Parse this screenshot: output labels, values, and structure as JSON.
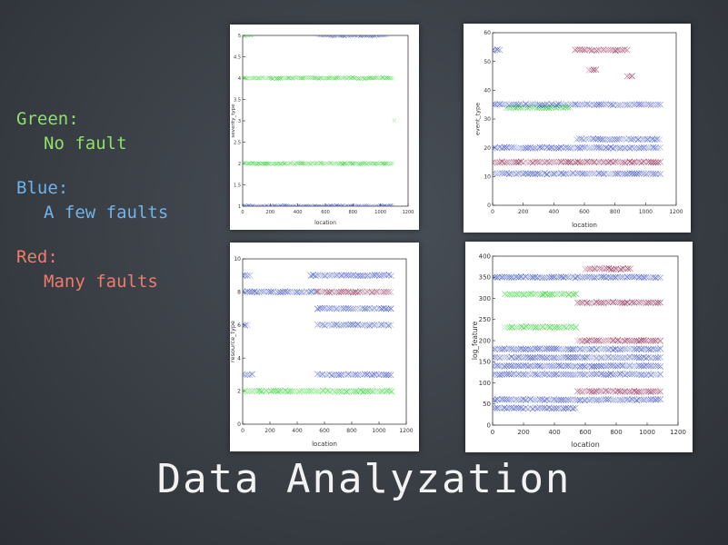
{
  "legend": [
    {
      "title": "Green:",
      "desc": "No fault",
      "color": "#8ee06a"
    },
    {
      "title": "Blue:",
      "desc": "A few faults",
      "color": "#6fb3ea"
    },
    {
      "title": "Red:",
      "desc": "Many faults",
      "color": "#f07b6b"
    }
  ],
  "slide_title": "Data Analyzation",
  "series_colors": {
    "green": "#2bd12b",
    "blue": "#3a4fc0",
    "red": "#8a1f4a"
  },
  "chart_data": [
    {
      "type": "scatter",
      "xlabel": "location",
      "ylabel": "severity_type",
      "xlim": [
        0,
        1200
      ],
      "ylim": [
        1,
        5
      ],
      "xticks": [
        0,
        200,
        400,
        600,
        800,
        1000,
        1200
      ],
      "yticks": [
        1,
        1.5,
        2,
        2.5,
        3,
        3.5,
        4,
        4.5,
        5
      ],
      "marker": "x",
      "bands": [
        {
          "y": 1,
          "from": 0,
          "to": 1100,
          "color": "blue"
        },
        {
          "y": 2,
          "from": 0,
          "to": 1100,
          "color": "green"
        },
        {
          "y": 4,
          "from": 0,
          "to": 1100,
          "color": "green"
        },
        {
          "y": 5,
          "from": 0,
          "to": 60,
          "color": "green"
        },
        {
          "y": 5,
          "from": 550,
          "to": 1050,
          "color": "blue"
        },
        {
          "y": 3,
          "from": 1100,
          "to": 1110,
          "color": "green"
        }
      ]
    },
    {
      "type": "scatter",
      "xlabel": "location",
      "ylabel": "event_type",
      "xlim": [
        0,
        1200
      ],
      "ylim": [
        0,
        60
      ],
      "xticks": [
        0,
        200,
        400,
        600,
        800,
        1000,
        1200
      ],
      "yticks": [
        0,
        10,
        20,
        30,
        40,
        50,
        60
      ],
      "marker": "x",
      "bands": [
        {
          "y": 11,
          "from": 0,
          "to": 1100,
          "color": "blue"
        },
        {
          "y": 15,
          "from": 0,
          "to": 1100,
          "color": "red"
        },
        {
          "y": 20,
          "from": 0,
          "to": 1100,
          "color": "blue"
        },
        {
          "y": 23,
          "from": 550,
          "to": 1100,
          "color": "blue"
        },
        {
          "y": 34,
          "from": 90,
          "to": 520,
          "color": "green"
        },
        {
          "y": 35,
          "from": 0,
          "to": 1100,
          "color": "blue"
        },
        {
          "y": 54,
          "from": 0,
          "to": 60,
          "color": "blue"
        },
        {
          "y": 54,
          "from": 540,
          "to": 880,
          "color": "red"
        },
        {
          "y": 47,
          "from": 630,
          "to": 680,
          "color": "red"
        },
        {
          "y": 45,
          "from": 880,
          "to": 920,
          "color": "red"
        }
      ]
    },
    {
      "type": "scatter",
      "xlabel": "location",
      "ylabel": "resource_type",
      "xlim": [
        0,
        1200
      ],
      "ylim": [
        0,
        10
      ],
      "xticks": [
        0,
        200,
        400,
        600,
        800,
        1000,
        1200
      ],
      "yticks": [
        0,
        2,
        4,
        6,
        8,
        10
      ],
      "marker": "x",
      "bands": [
        {
          "y": 2,
          "from": 0,
          "to": 1100,
          "color": "green"
        },
        {
          "y": 3,
          "from": 0,
          "to": 80,
          "color": "blue"
        },
        {
          "y": 6,
          "from": 0,
          "to": 40,
          "color": "blue"
        },
        {
          "y": 7,
          "from": 550,
          "to": 1100,
          "color": "blue"
        },
        {
          "y": 8,
          "from": 0,
          "to": 550,
          "color": "blue"
        },
        {
          "y": 8,
          "from": 550,
          "to": 1100,
          "color": "red"
        },
        {
          "y": 9,
          "from": 0,
          "to": 60,
          "color": "blue"
        },
        {
          "y": 9,
          "from": 500,
          "to": 1100,
          "color": "blue"
        },
        {
          "y": 6,
          "from": 550,
          "to": 1100,
          "color": "blue"
        },
        {
          "y": 3,
          "from": 550,
          "to": 1100,
          "color": "blue"
        }
      ]
    },
    {
      "type": "scatter",
      "xlabel": "location",
      "ylabel": "log_feature",
      "xlim": [
        0,
        1200
      ],
      "ylim": [
        0,
        400
      ],
      "xticks": [
        0,
        200,
        400,
        600,
        800,
        1000,
        1200
      ],
      "yticks": [
        0,
        50,
        100,
        150,
        200,
        250,
        300,
        350,
        400
      ],
      "marker": "x",
      "bands": [
        {
          "y": 310,
          "from": 80,
          "to": 540,
          "color": "green"
        },
        {
          "y": 232,
          "from": 80,
          "to": 540,
          "color": "green"
        },
        {
          "y": 350,
          "from": 0,
          "to": 1100,
          "color": "blue"
        },
        {
          "y": 290,
          "from": 550,
          "to": 1100,
          "color": "red"
        },
        {
          "y": 200,
          "from": 550,
          "to": 1100,
          "color": "red"
        },
        {
          "y": 180,
          "from": 0,
          "to": 1100,
          "color": "blue"
        },
        {
          "y": 160,
          "from": 0,
          "to": 1100,
          "color": "blue"
        },
        {
          "y": 140,
          "from": 0,
          "to": 1100,
          "color": "blue"
        },
        {
          "y": 120,
          "from": 0,
          "to": 1100,
          "color": "blue"
        },
        {
          "y": 80,
          "from": 550,
          "to": 1100,
          "color": "red"
        },
        {
          "y": 60,
          "from": 0,
          "to": 1100,
          "color": "blue"
        },
        {
          "y": 40,
          "from": 0,
          "to": 540,
          "color": "blue"
        },
        {
          "y": 370,
          "from": 600,
          "to": 900,
          "color": "red"
        }
      ]
    }
  ]
}
